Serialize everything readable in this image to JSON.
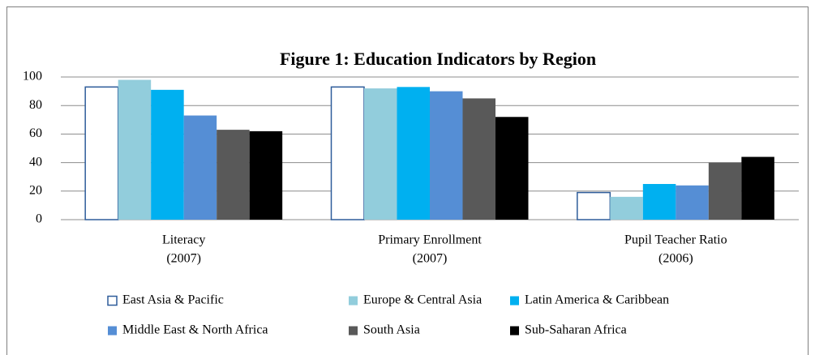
{
  "chart_data": {
    "type": "bar",
    "title": "Figure 1: Education Indicators by Region",
    "categories": [
      [
        "Literacy",
        "(2007)"
      ],
      [
        "Primary Enrollment",
        "(2007)"
      ],
      [
        "Pupil Teacher Ratio",
        "(2006)"
      ]
    ],
    "series": [
      {
        "name": "East Asia & Pacific",
        "color": "#ffffff",
        "edgecolor": "#2e5c9a",
        "values": [
          93,
          93,
          19
        ]
      },
      {
        "name": "Europe & Central Asia",
        "color": "#92cddc",
        "values": [
          98,
          92,
          16
        ]
      },
      {
        "name": "Latin America & Caribbean",
        "color": "#00b0f0",
        "values": [
          91,
          93,
          25
        ]
      },
      {
        "name": "Middle East & North Africa",
        "color": "#558ed5",
        "values": [
          73,
          90,
          24
        ]
      },
      {
        "name": "South Asia",
        "color": "#595959",
        "values": [
          63,
          85,
          40
        ]
      },
      {
        "name": "Sub-Saharan Africa",
        "color": "#000000",
        "values": [
          62,
          72,
          44
        ]
      }
    ],
    "ylim": [
      0,
      100
    ],
    "yticks": [
      0,
      20,
      40,
      60,
      80,
      100
    ],
    "grid": true,
    "legend": "bottom"
  }
}
